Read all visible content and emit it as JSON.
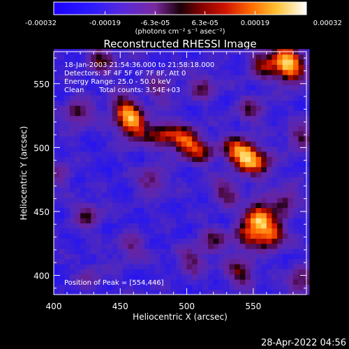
{
  "chart_data": {
    "type": "heatmap",
    "title": "Reconstructed RHESSI Image",
    "xlabel": "Heliocentric X (arcsec)",
    "ylabel": "Heliocentric Y (arcsec)",
    "xlim": [
      400,
      590
    ],
    "ylim": [
      385,
      575
    ],
    "x_ticks": [
      {
        "value": 400,
        "label": "400"
      },
      {
        "value": 450,
        "label": "450"
      },
      {
        "value": 500,
        "label": "500"
      },
      {
        "value": 550,
        "label": "550"
      }
    ],
    "y_ticks": [
      {
        "value": 400,
        "label": "400"
      },
      {
        "value": 450,
        "label": "450"
      },
      {
        "value": 500,
        "label": "500"
      },
      {
        "value": 550,
        "label": "550"
      }
    ],
    "colorbar": {
      "min": -0.00032,
      "max": 0.00032,
      "ticks": [
        {
          "value": -0.00032,
          "label": "-0.00032"
        },
        {
          "value": -0.00019,
          "label": "-0.00019"
        },
        {
          "value": -6.3e-05,
          "label": "-6.3e-05"
        },
        {
          "value": 6.3e-05,
          "label": "6.3e-05"
        },
        {
          "value": 0.00019,
          "label": "0.00019"
        },
        {
          "value": 0.00032,
          "label": "0.00032"
        }
      ],
      "units": "(photons cm⁻² s⁻¹ asec⁻²)"
    },
    "annotations": {
      "time_range": "18-Jan-2003 21:54:36.000 to 21:58:18.000",
      "detectors": "Detectors: 3F 4F 5F 6F 7F 8F, Att 0",
      "energy_range": "Energy Range: 25.0 - 50.0 keV",
      "method": "Clean",
      "total_counts": "Total counts: 3.54E+03",
      "peak": "Position of Peak = [554,446]"
    },
    "peak_position": [
      554,
      446
    ],
    "grid_step_arcsec": 4,
    "sources": [
      {
        "x": 554,
        "y": 446,
        "amp": 1.0
      },
      {
        "x": 563,
        "y": 432,
        "amp": 0.85
      },
      {
        "x": 545,
        "y": 430,
        "amp": 0.55
      },
      {
        "x": 574,
        "y": 458,
        "amp": 0.5
      },
      {
        "x": 498,
        "y": 506,
        "amp": 0.75
      },
      {
        "x": 482,
        "y": 511,
        "amp": 0.6
      },
      {
        "x": 510,
        "y": 497,
        "amp": 0.55
      },
      {
        "x": 546,
        "y": 493,
        "amp": 0.85
      },
      {
        "x": 536,
        "y": 499,
        "amp": 0.6
      },
      {
        "x": 556,
        "y": 486,
        "amp": 0.45
      },
      {
        "x": 458,
        "y": 522,
        "amp": 0.7
      },
      {
        "x": 452,
        "y": 532,
        "amp": 0.55
      },
      {
        "x": 462,
        "y": 512,
        "amp": 0.45
      },
      {
        "x": 574,
        "y": 571,
        "amp": 0.9
      },
      {
        "x": 579,
        "y": 558,
        "amp": 0.7
      },
      {
        "x": 557,
        "y": 565,
        "amp": 0.55
      },
      {
        "x": 436,
        "y": 569,
        "amp": 0.5
      },
      {
        "x": 418,
        "y": 527,
        "amp": 0.5
      },
      {
        "x": 426,
        "y": 447,
        "amp": 0.45
      },
      {
        "x": 474,
        "y": 474,
        "amp": 0.45
      },
      {
        "x": 530,
        "y": 466,
        "amp": 0.45
      },
      {
        "x": 520,
        "y": 428,
        "amp": 0.4
      },
      {
        "x": 540,
        "y": 403,
        "amp": 0.55
      },
      {
        "x": 504,
        "y": 412,
        "amp": 0.4
      },
      {
        "x": 458,
        "y": 422,
        "amp": 0.35
      },
      {
        "x": 480,
        "y": 547,
        "amp": 0.35
      },
      {
        "x": 512,
        "y": 548,
        "amp": 0.4
      },
      {
        "x": 548,
        "y": 530,
        "amp": 0.4
      },
      {
        "x": 586,
        "y": 508,
        "amp": 0.45
      },
      {
        "x": 586,
        "y": 396,
        "amp": 0.5
      },
      {
        "x": 428,
        "y": 400,
        "amp": 0.25
      },
      {
        "x": 404,
        "y": 480,
        "amp": 0.3
      }
    ]
  },
  "timestamp": "28-Apr-2022 04:56"
}
